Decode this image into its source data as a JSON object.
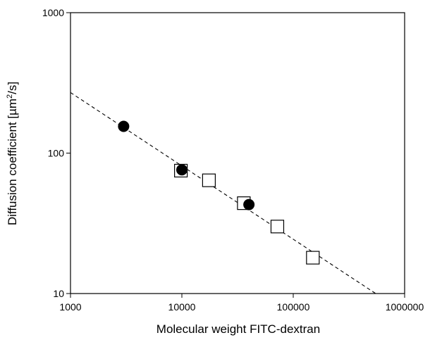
{
  "chart_data": {
    "type": "scatter",
    "x_scale": "log",
    "y_scale": "log",
    "xlabel": "Molecular weight FITC-dextran",
    "ylabel_prefix": "Diffusion coefficient [µm",
    "ylabel_sup": "2",
    "ylabel_suffix": "/s]",
    "xlim": [
      1000,
      1000000
    ],
    "ylim": [
      10,
      1000
    ],
    "x_ticks": [
      1000,
      10000,
      100000,
      1000000
    ],
    "x_tick_labels": [
      "1000",
      "10000",
      "100000",
      "1000000"
    ],
    "y_ticks": [
      10,
      100,
      1000
    ],
    "y_tick_labels": [
      "10",
      "100",
      "1000"
    ],
    "grid": false,
    "series": [
      {
        "marker": "filled-circle",
        "color": "#000000",
        "points": [
          {
            "x": 3000,
            "y": 155
          },
          {
            "x": 10000,
            "y": 76
          },
          {
            "x": 40000,
            "y": 43
          }
        ]
      },
      {
        "marker": "open-square",
        "color": "#000000",
        "points": [
          {
            "x": 9800,
            "y": 75
          },
          {
            "x": 17500,
            "y": 64
          },
          {
            "x": 36000,
            "y": 44
          },
          {
            "x": 72000,
            "y": 30
          },
          {
            "x": 150000,
            "y": 18
          }
        ]
      }
    ],
    "fit_line": {
      "style": "dashed",
      "color": "#000000",
      "points": [
        {
          "x": 1000,
          "y": 270
        },
        {
          "x": 550000,
          "y": 10
        }
      ]
    }
  }
}
